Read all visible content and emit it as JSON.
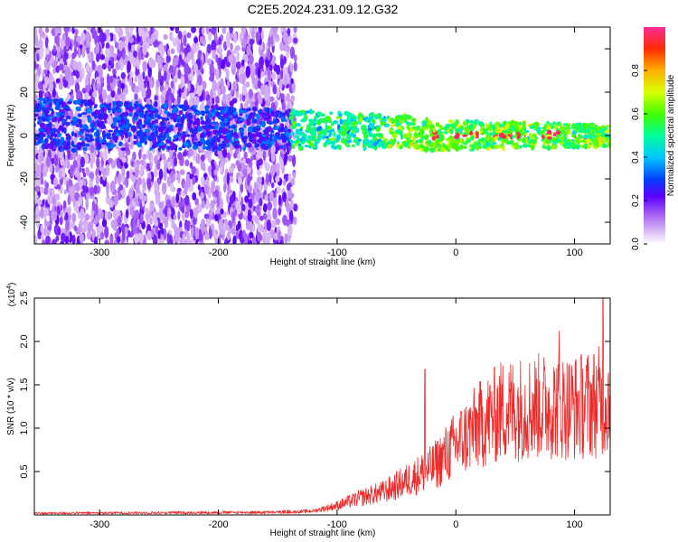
{
  "page": {
    "title": "C2E5.2024.231.09.12.G32"
  },
  "colors": {
    "snr_line": "#ee2b2b",
    "colorbar": [
      "#ffffff",
      "#cfa6f2",
      "#9b4df0",
      "#5a00ff",
      "#0044ff",
      "#00c8ff",
      "#00ff9a",
      "#44ff00",
      "#d8ff00",
      "#ffb000",
      "#ff2a00",
      "#ff2a9a"
    ]
  },
  "chart_data": [
    {
      "type": "heatmap",
      "title": "C2E5.2024.231.09.12.G32",
      "xlabel": "Height of straight line (km)",
      "ylabel": "Frequency (Hz)",
      "xlim": [
        -355,
        130
      ],
      "ylim": [
        -50,
        50
      ],
      "xticks": [
        -300,
        -200,
        -100,
        0,
        100
      ],
      "yticks": [
        -40,
        -20,
        0,
        20,
        40
      ],
      "colorbar": {
        "label": "Normalized spectral amplitude",
        "range": [
          0,
          1
        ],
        "ticks": [
          "0.0",
          "0.2",
          "0.4",
          "0.6",
          "0.8"
        ],
        "tick_values": [
          0.0,
          0.2,
          0.4,
          0.6,
          0.8
        ]
      },
      "features": {
        "noise_region_x": [
          -355,
          -135
        ],
        "signal_center_y": 0,
        "band_width_hz_far": 12,
        "band_width_hz_near": 5,
        "peak_amplitude_x_range": [
          -20,
          110
        ]
      }
    },
    {
      "type": "line",
      "xlabel": "Height of straight line (km)",
      "ylabel": "SNR (10 * v/v)",
      "y_multiplier": "(x10^4)",
      "xlim": [
        -355,
        130
      ],
      "ylim": [
        0,
        2.5
      ],
      "xticks": [
        -300,
        -200,
        -100,
        0,
        100
      ],
      "yticks": [
        0.5,
        1.0,
        1.5,
        2.0,
        2.5
      ],
      "series": [
        {
          "envelope_x": [
            -355,
            -150,
            -120,
            -100,
            -80,
            -60,
            -40,
            -20,
            0,
            20,
            40,
            60,
            80,
            100,
            120,
            130
          ],
          "envelope_y": [
            0.02,
            0.03,
            0.05,
            0.12,
            0.22,
            0.3,
            0.45,
            0.6,
            0.9,
            1.15,
            1.35,
            1.38,
            1.4,
            1.38,
            1.45,
            1.5
          ],
          "spikes": [
            {
              "x": -26,
              "y": 1.68
            },
            {
              "x": 87,
              "y": 2.12
            },
            {
              "x": 124,
              "y": 2.5
            }
          ]
        }
      ]
    }
  ]
}
